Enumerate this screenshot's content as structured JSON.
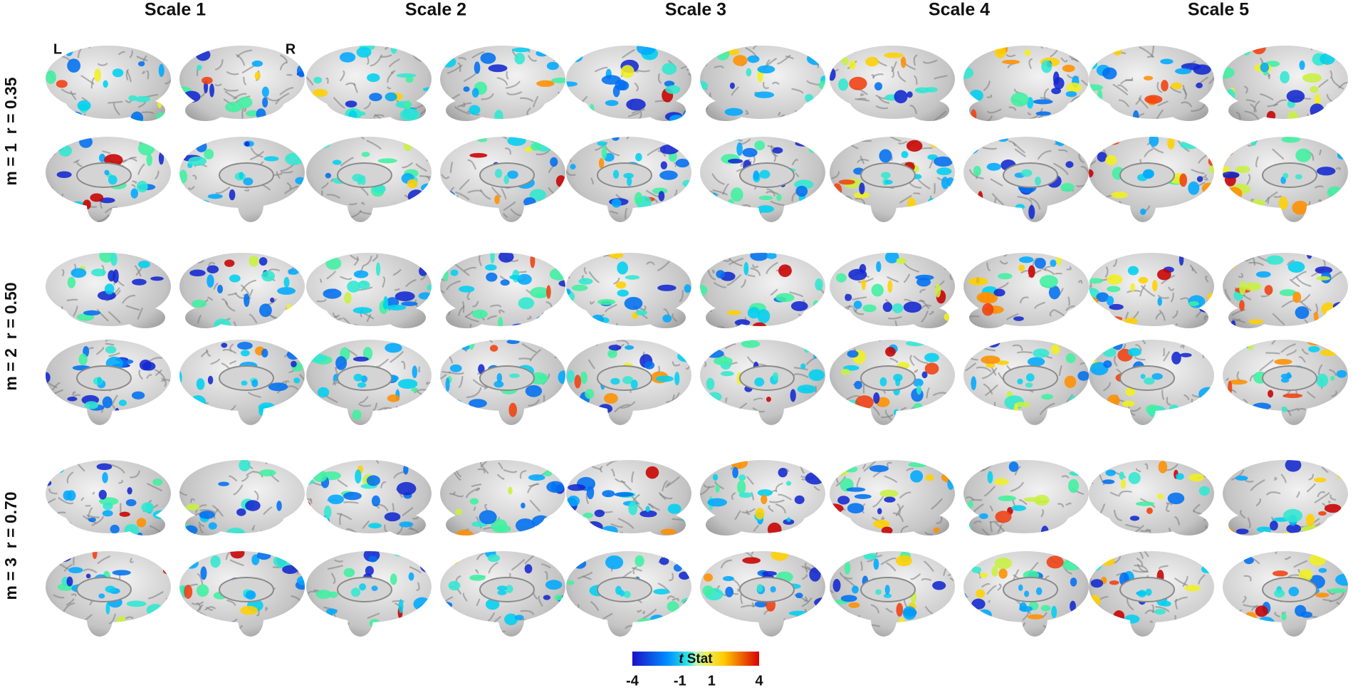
{
  "columns": [
    "Scale 1",
    "Scale 2",
    "Scale 3",
    "Scale 4",
    "Scale 5"
  ],
  "rows": [
    "m = 1  r = 0.35",
    "m = 2  r = 0.50",
    "m = 3  r = 0.70"
  ],
  "hemispheres": {
    "left": "L",
    "right": "R"
  },
  "colorbar": {
    "variable": "t",
    "label": "Stat",
    "ticks": [
      -4,
      -1,
      1,
      4
    ]
  }
}
